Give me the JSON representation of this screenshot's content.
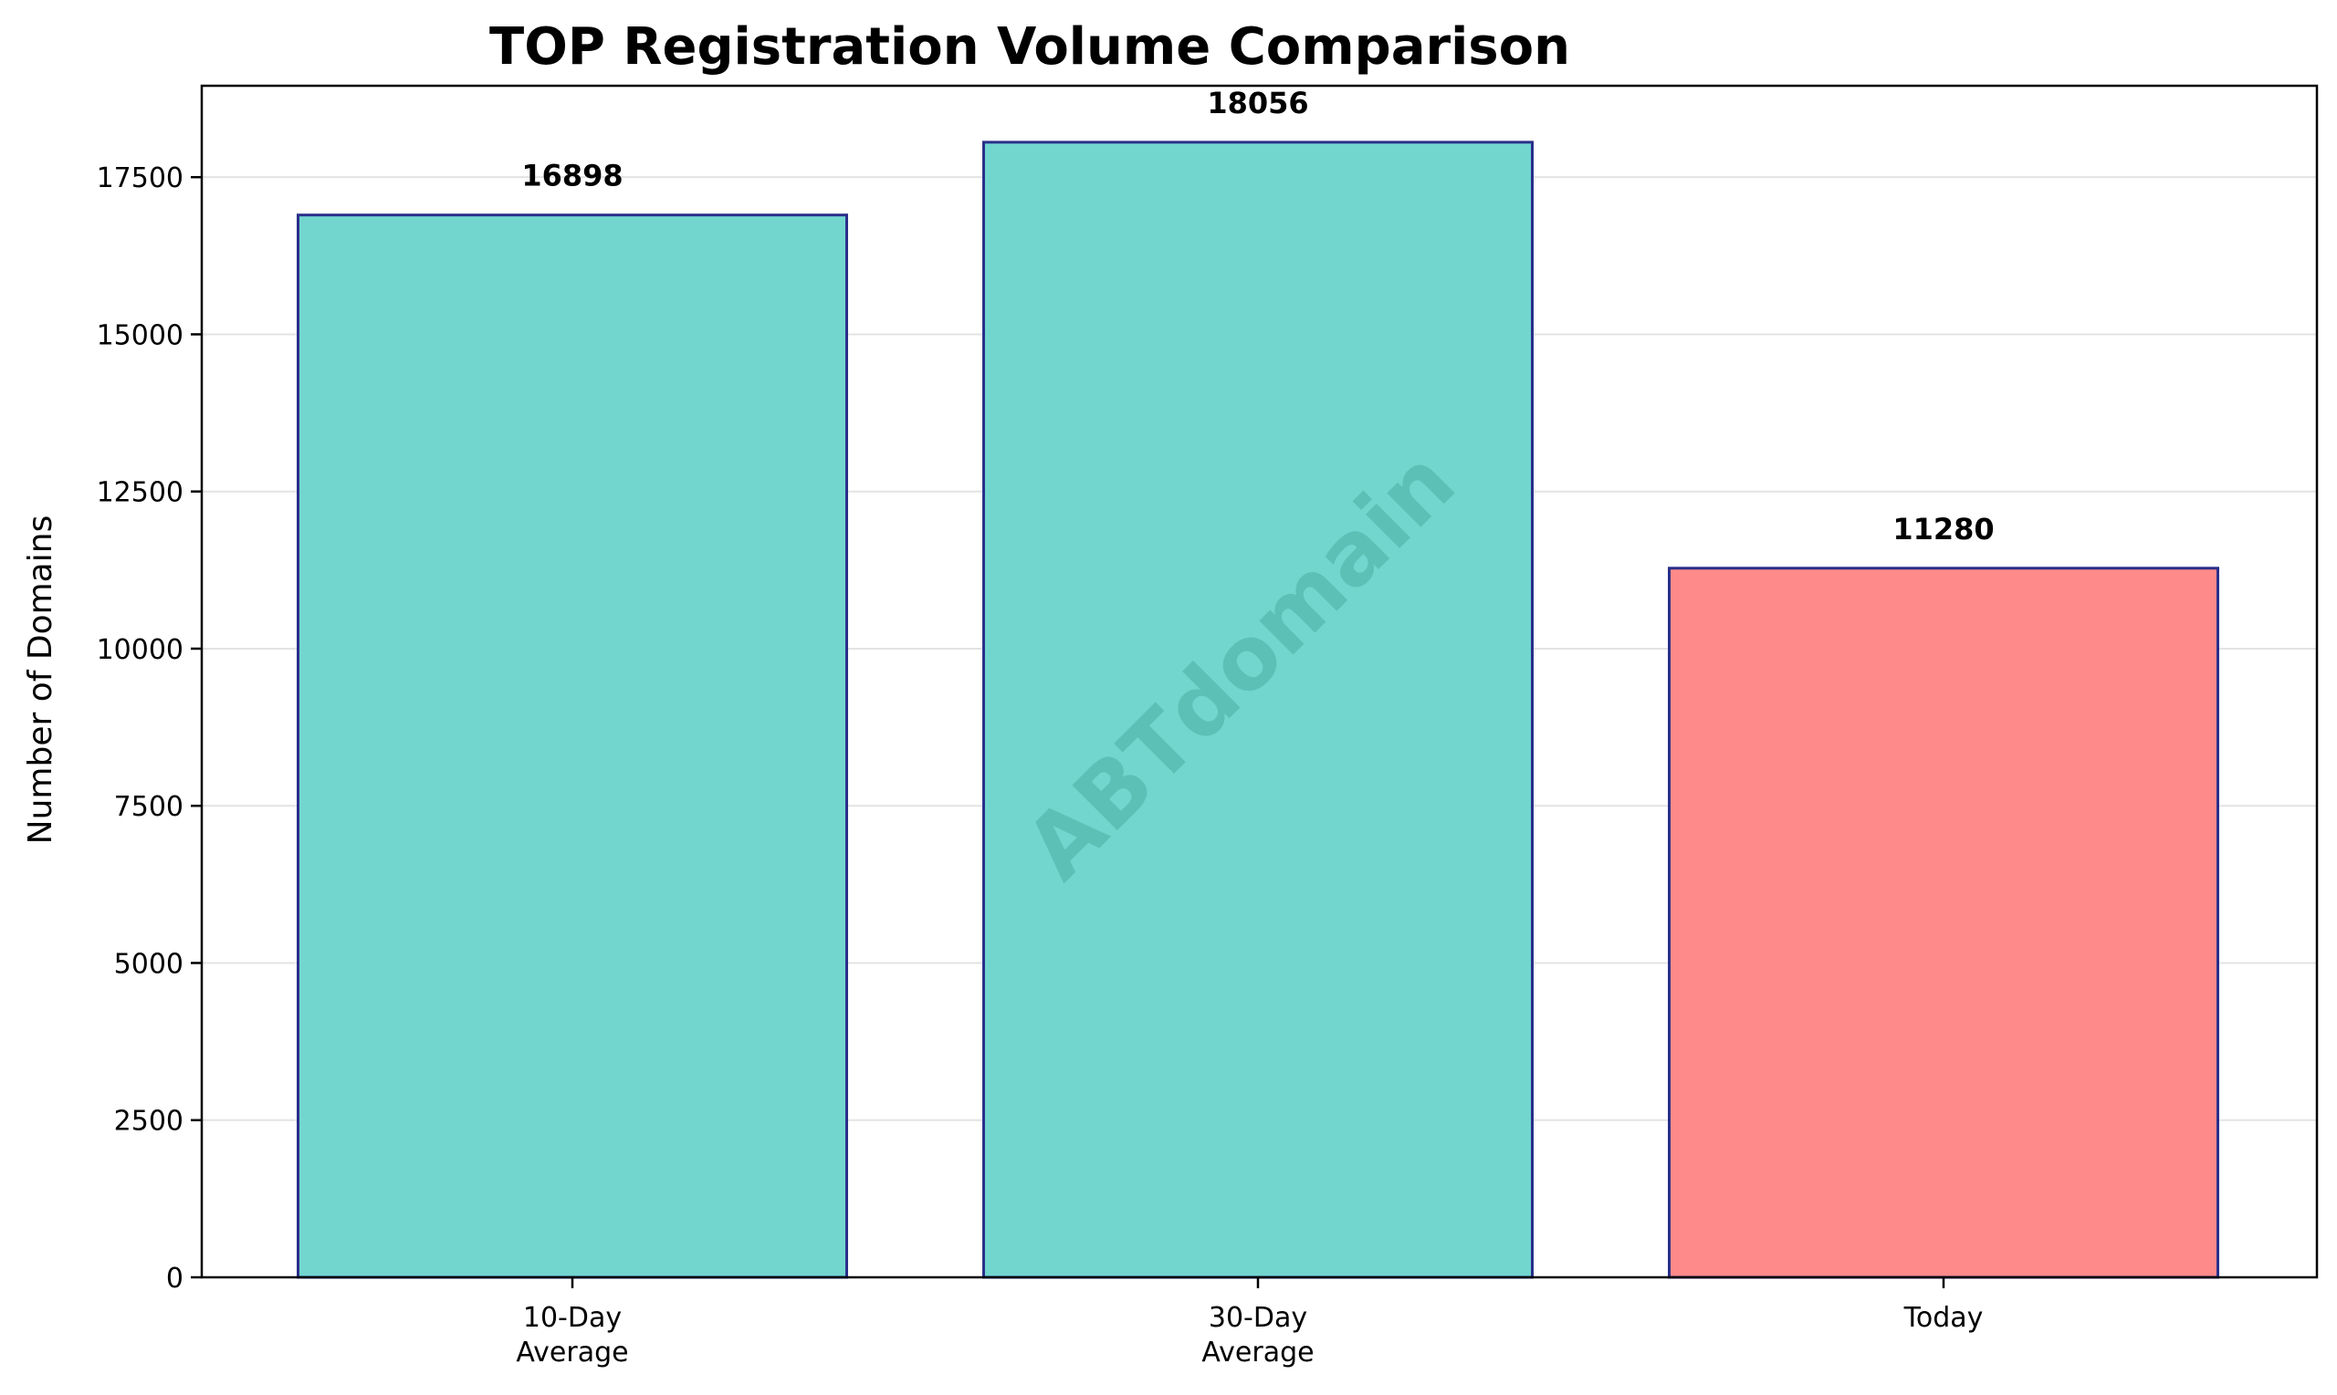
{
  "chart_data": {
    "type": "bar",
    "title": "TOP Registration Volume Comparison",
    "ylabel": "Number of Domains",
    "xlabel": "",
    "categories": [
      [
        "10-Day",
        "Average"
      ],
      [
        "30-Day",
        "Average"
      ],
      [
        "Today"
      ]
    ],
    "values": [
      16898,
      18056,
      11280
    ],
    "bar_colors": [
      "#72d6cf",
      "#72d6cf",
      "#ff8a8a"
    ],
    "bar_edge_color": "#2a2f8a",
    "ylim": [
      0,
      18954
    ],
    "yticks": [
      0,
      2500,
      5000,
      7500,
      10000,
      12500,
      15000,
      17500
    ],
    "grid": "y",
    "watermark": "ABTdomain"
  }
}
